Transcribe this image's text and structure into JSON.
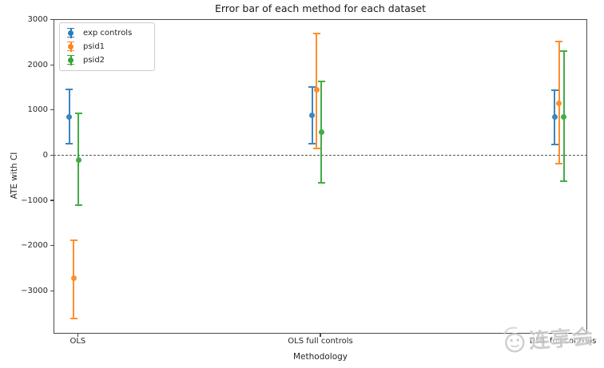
{
  "figure": {
    "title": "Error bar of each method for each dataset"
  },
  "chart_data": {
    "type": "errorbar",
    "title": "Error bar of each method for each dataset",
    "xlabel": "Methodology",
    "ylabel": "ATE with CI",
    "categories": [
      "OLS",
      "OLS full controls",
      "DML full controls"
    ],
    "yticks": [
      3000,
      2000,
      1000,
      0,
      -1000,
      -2000,
      -3000
    ],
    "ylim": [
      -3950,
      3010
    ],
    "grid": false,
    "zero_line": {
      "y": 0,
      "style": "dashed",
      "color": "#555555"
    },
    "legend_position": "upper left",
    "series": [
      {
        "name": "exp controls",
        "color": "#1f77b4",
        "means": [
          850,
          890,
          840
        ],
        "ci_low": [
          255,
          260,
          230
        ],
        "ci_high": [
          1460,
          1500,
          1430
        ]
      },
      {
        "name": "psid1",
        "color": "#ff7f0e",
        "means": [
          -2730,
          1450,
          1150
        ],
        "ci_low": [
          -3620,
          140,
          -195
        ],
        "ci_high": [
          -1880,
          2700,
          2510
        ]
      },
      {
        "name": "psid2",
        "color": "#2ca02c",
        "means": [
          -100,
          510,
          840
        ],
        "ci_low": [
          -1110,
          -620,
          -580
        ],
        "ci_high": [
          920,
          1630,
          2300
        ]
      }
    ]
  },
  "watermark": {
    "text": "连享会",
    "color": "#c6c6c6"
  }
}
